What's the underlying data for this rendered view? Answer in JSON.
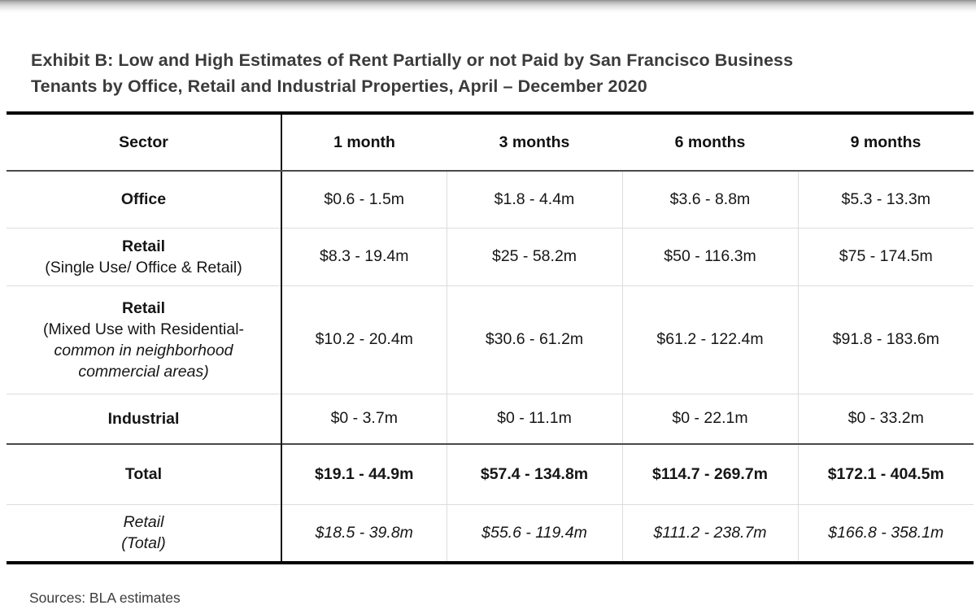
{
  "page": {
    "title_lines": [
      "Exhibit B: Low and High Estimates of Rent Partially or not Paid by San Francisco Business",
      "Tenants by Office, Retail and Industrial Properties, April – December 2020"
    ],
    "source_note": "Sources: BLA estimates"
  },
  "chart_data": {
    "type": "table",
    "title": "Exhibit B: Low and High Estimates of Rent Partially or not Paid by San Francisco Business Tenants by Office, Retail and Industrial Properties, April – December 2020",
    "columns": [
      "Sector",
      "1 month",
      "3 months",
      "6 months",
      "9 months"
    ],
    "rows": [
      {
        "id": "office",
        "label_lines": [
          {
            "text": "Office",
            "style": "bold"
          }
        ],
        "values": [
          "$0.6 - 1.5m",
          "$1.8 - 4.4m",
          "$3.6 - 8.8m",
          "$5.3 - 13.3m"
        ],
        "value_style": "regular",
        "separator_top": "none"
      },
      {
        "id": "retail-single",
        "label_lines": [
          {
            "text": "Retail",
            "style": "bold"
          },
          {
            "text": "(Single Use/ Office & Retail)",
            "style": "regular"
          }
        ],
        "values": [
          "$8.3 - 19.4m",
          "$25 - 58.2m",
          "$50 - 116.3m",
          "$75 - 174.5m"
        ],
        "value_style": "regular",
        "separator_top": "light"
      },
      {
        "id": "retail-mixed",
        "label_lines": [
          {
            "text": "Retail",
            "style": "bold"
          },
          {
            "text": "(Mixed Use with Residential-",
            "style": "regular"
          },
          {
            "text": "common in neighborhood",
            "style": "italic"
          },
          {
            "text": "commercial areas)",
            "style": "italic"
          }
        ],
        "values": [
          "$10.2 - 20.4m",
          "$30.6 - 61.2m",
          "$61.2 - 122.4m",
          "$91.8 - 183.6m"
        ],
        "value_style": "regular",
        "separator_top": "light"
      },
      {
        "id": "industrial",
        "label_lines": [
          {
            "text": "Industrial",
            "style": "bold"
          }
        ],
        "values": [
          "$0 - 3.7m",
          "$0 - 11.1m",
          "$0 - 22.1m",
          "$0 - 33.2m"
        ],
        "value_style": "regular",
        "separator_top": "light"
      },
      {
        "id": "total",
        "label_lines": [
          {
            "text": "Total",
            "style": "bold"
          }
        ],
        "values": [
          "$19.1 - 44.9m",
          "$57.4 - 134.8m",
          "$114.7 - 269.7m",
          "$172.1 - 404.5m"
        ],
        "value_style": "bold",
        "separator_top": "dark"
      },
      {
        "id": "retail-total",
        "label_lines": [
          {
            "text": "Retail",
            "style": "italic"
          },
          {
            "text": "(Total)",
            "style": "italic"
          }
        ],
        "values": [
          "$18.5 - 39.8m",
          "$55.6 - 119.4m",
          "$111.2 - 238.7m",
          "$166.8 - 358.1m"
        ],
        "value_style": "italic",
        "separator_top": "light"
      }
    ]
  }
}
